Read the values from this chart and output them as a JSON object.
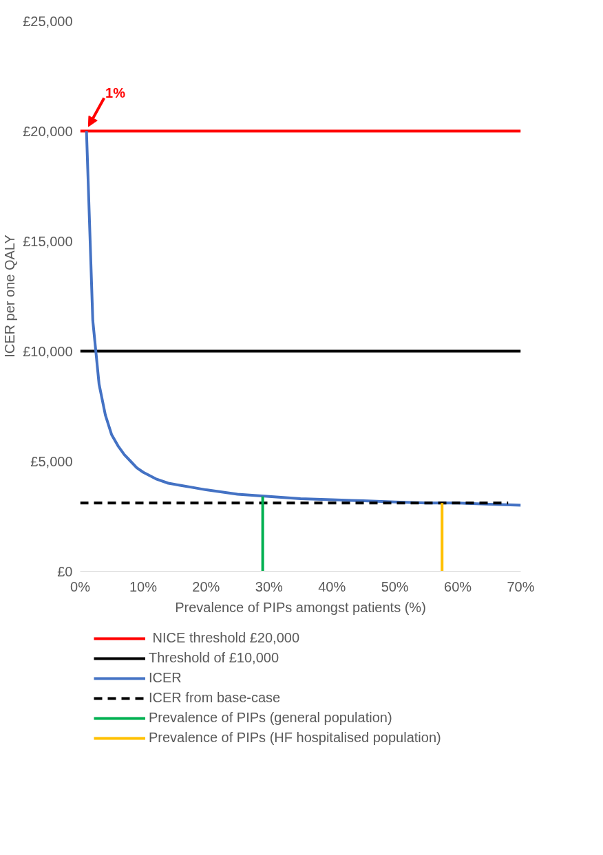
{
  "chart_data": {
    "type": "line",
    "xlabel": "Prevalence of PIPs amongst patients (%)",
    "ylabel": "ICER per one QALY",
    "xlim": [
      0,
      70
    ],
    "ylim": [
      0,
      25000
    ],
    "xticks": [
      {
        "value": 0,
        "label": "0%"
      },
      {
        "value": 10,
        "label": "10%"
      },
      {
        "value": 20,
        "label": "20%"
      },
      {
        "value": 30,
        "label": "30%"
      },
      {
        "value": 40,
        "label": "40%"
      },
      {
        "value": 50,
        "label": "50%"
      },
      {
        "value": 60,
        "label": "60%"
      },
      {
        "value": 70,
        "label": "70%"
      }
    ],
    "yticks": [
      {
        "value": 0,
        "label": "£0"
      },
      {
        "value": 5000,
        "label": "£5,000"
      },
      {
        "value": 10000,
        "label": "£10,000"
      },
      {
        "value": 15000,
        "label": "£15,000"
      },
      {
        "value": 20000,
        "label": "£20,000"
      },
      {
        "value": 25000,
        "label": "£25,000"
      }
    ],
    "grid": false,
    "legend": "bottom",
    "marker": "none",
    "annotations": [
      {
        "text": "1%",
        "x": 1,
        "y": 20000
      }
    ],
    "series": [
      {
        "name": " NICE threshold £20,000",
        "color": "#ff0000",
        "x": [
          0,
          70
        ],
        "values": [
          20000,
          20000
        ]
      },
      {
        "name": "Threshold of £10,000",
        "color": "#000000",
        "x": [
          0,
          70
        ],
        "values": [
          10000,
          10000
        ]
      },
      {
        "name": "ICER",
        "color": "#4472c4",
        "x": [
          1,
          2,
          3,
          4,
          5,
          6,
          7,
          8,
          9,
          10,
          12,
          14,
          16,
          18,
          20,
          25,
          30,
          35,
          40,
          45,
          50,
          55,
          60,
          65,
          70
        ],
        "values": [
          20000,
          11400,
          8500,
          7100,
          6200,
          5700,
          5300,
          5000,
          4700,
          4500,
          4200,
          4000,
          3900,
          3800,
          3700,
          3500,
          3400,
          3300,
          3250,
          3200,
          3150,
          3100,
          3100,
          3050,
          3000
        ]
      },
      {
        "name": "ICER from base-case",
        "color": "#000000",
        "line_style": "dashed",
        "x": [
          0,
          68
        ],
        "values": [
          3100,
          3100
        ]
      },
      {
        "name": "Prevalence of PIPs (general population)",
        "color": "#00b050",
        "x": [
          29,
          29
        ],
        "values": [
          0,
          3400
        ]
      },
      {
        "name": "Prevalence of PIPs (HF hospitalised population)",
        "color": "#ffc000",
        "x": [
          57.5,
          57.5
        ],
        "values": [
          0,
          3100
        ]
      }
    ]
  }
}
